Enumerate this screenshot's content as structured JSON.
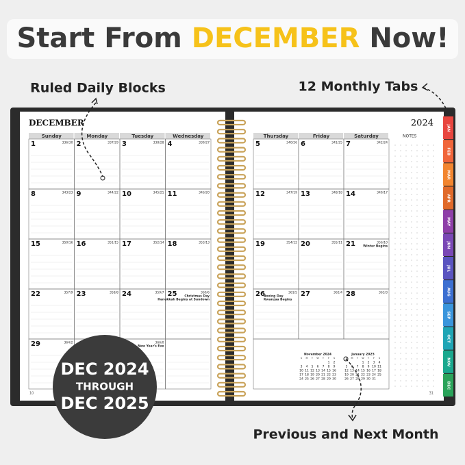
{
  "headline": {
    "prefix": "Start From ",
    "highlight": "DECEMBER",
    "suffix": " Now!"
  },
  "callouts": {
    "ruled": "Ruled Daily Blocks",
    "tabs": "12 Monthly Tabs",
    "months": "Previous and Next Month"
  },
  "badge": [
    "DEC 2024",
    "THROUGH",
    "DEC 2025"
  ],
  "left_page": {
    "month": "DECEMBER",
    "page": "10",
    "weekdays": [
      "Sunday",
      "Monday",
      "Tuesday",
      "Wednesday"
    ],
    "weeks": [
      [
        {
          "day": 1,
          "count": "336/30"
        },
        {
          "day": 2,
          "count": "337/29"
        },
        {
          "day": 3,
          "count": "338/28"
        },
        {
          "day": 4,
          "count": "339/27"
        }
      ],
      [
        {
          "day": 8,
          "count": "343/23"
        },
        {
          "day": 9,
          "count": "344/22"
        },
        {
          "day": 10,
          "count": "345/21"
        },
        {
          "day": 11,
          "count": "346/20"
        }
      ],
      [
        {
          "day": 15,
          "count": "350/16"
        },
        {
          "day": 16,
          "count": "351/15"
        },
        {
          "day": 17,
          "count": "352/14"
        },
        {
          "day": 18,
          "count": "353/13"
        }
      ],
      [
        {
          "day": 22,
          "count": "357/9"
        },
        {
          "day": 23,
          "count": "358/8"
        },
        {
          "day": 24,
          "count": "359/7"
        },
        {
          "day": 25,
          "count": "360/6",
          "note": [
            "Christmas Day",
            "Hanukkah Begins at Sundown"
          ]
        }
      ],
      [
        {
          "day": 29,
          "count": "364/2"
        },
        null,
        {
          "count": "366/0",
          "note": [
            "New Year's Eve"
          ]
        },
        null
      ]
    ]
  },
  "right_page": {
    "year": "2024",
    "notes": "NOTES",
    "page": "31",
    "weekdays": [
      "Thursday",
      "Friday",
      "Saturday"
    ],
    "weeks": [
      [
        {
          "day": 5,
          "count": "340/26"
        },
        {
          "day": 6,
          "count": "341/25"
        },
        {
          "day": 7,
          "count": "342/24"
        }
      ],
      [
        {
          "day": 12,
          "count": "347/19"
        },
        {
          "day": 13,
          "count": "348/18"
        },
        {
          "day": 14,
          "count": "349/17"
        }
      ],
      [
        {
          "day": 19,
          "count": "354/12"
        },
        {
          "day": 20,
          "count": "355/11"
        },
        {
          "day": 21,
          "count": "356/10",
          "note": [
            "Winter Begins"
          ]
        }
      ],
      [
        {
          "day": 26,
          "count": "361/5",
          "note": [
            "Boxing Day",
            "Kwanzaa Begins"
          ]
        },
        {
          "day": 27,
          "count": "362/4"
        },
        {
          "day": 28,
          "count": "363/3"
        }
      ]
    ]
  },
  "mini_calendars": [
    {
      "title": "November 2024",
      "days": [
        "S",
        "M",
        "T",
        "W",
        "T",
        "F",
        "S"
      ],
      "weeks": [
        [
          null,
          null,
          null,
          null,
          null,
          1,
          2
        ],
        [
          3,
          4,
          5,
          6,
          7,
          8,
          9
        ],
        [
          10,
          11,
          12,
          13,
          14,
          15,
          16
        ],
        [
          17,
          18,
          19,
          20,
          21,
          22,
          23
        ],
        [
          24,
          25,
          26,
          27,
          28,
          29,
          30
        ]
      ]
    },
    {
      "title": "January 2025",
      "days": [
        "S",
        "M",
        "T",
        "W",
        "T",
        "F",
        "S"
      ],
      "weeks": [
        [
          null,
          null,
          null,
          1,
          2,
          3,
          4
        ],
        [
          5,
          6,
          7,
          8,
          9,
          10,
          11
        ],
        [
          12,
          13,
          14,
          15,
          16,
          17,
          18
        ],
        [
          19,
          20,
          21,
          22,
          23,
          24,
          25
        ],
        [
          26,
          27,
          28,
          29,
          30,
          31,
          null
        ]
      ]
    }
  ],
  "tabs": [
    {
      "label": "JAN",
      "color": "#e8463f"
    },
    {
      "label": "FEB",
      "color": "#f0653a"
    },
    {
      "label": "MAR",
      "color": "#f2852f"
    },
    {
      "label": "APR",
      "color": "#e06a2a"
    },
    {
      "label": "MAY",
      "color": "#8e3fa8"
    },
    {
      "label": "JUN",
      "color": "#7a48b5"
    },
    {
      "label": "JUL",
      "color": "#5a54c0"
    },
    {
      "label": "AUG",
      "color": "#3c6fd1"
    },
    {
      "label": "SEP",
      "color": "#3a95dc"
    },
    {
      "label": "OCT",
      "color": "#1fa5b5"
    },
    {
      "label": "NOV",
      "color": "#1aa88e"
    },
    {
      "label": "DEC",
      "color": "#2aa35a"
    }
  ]
}
